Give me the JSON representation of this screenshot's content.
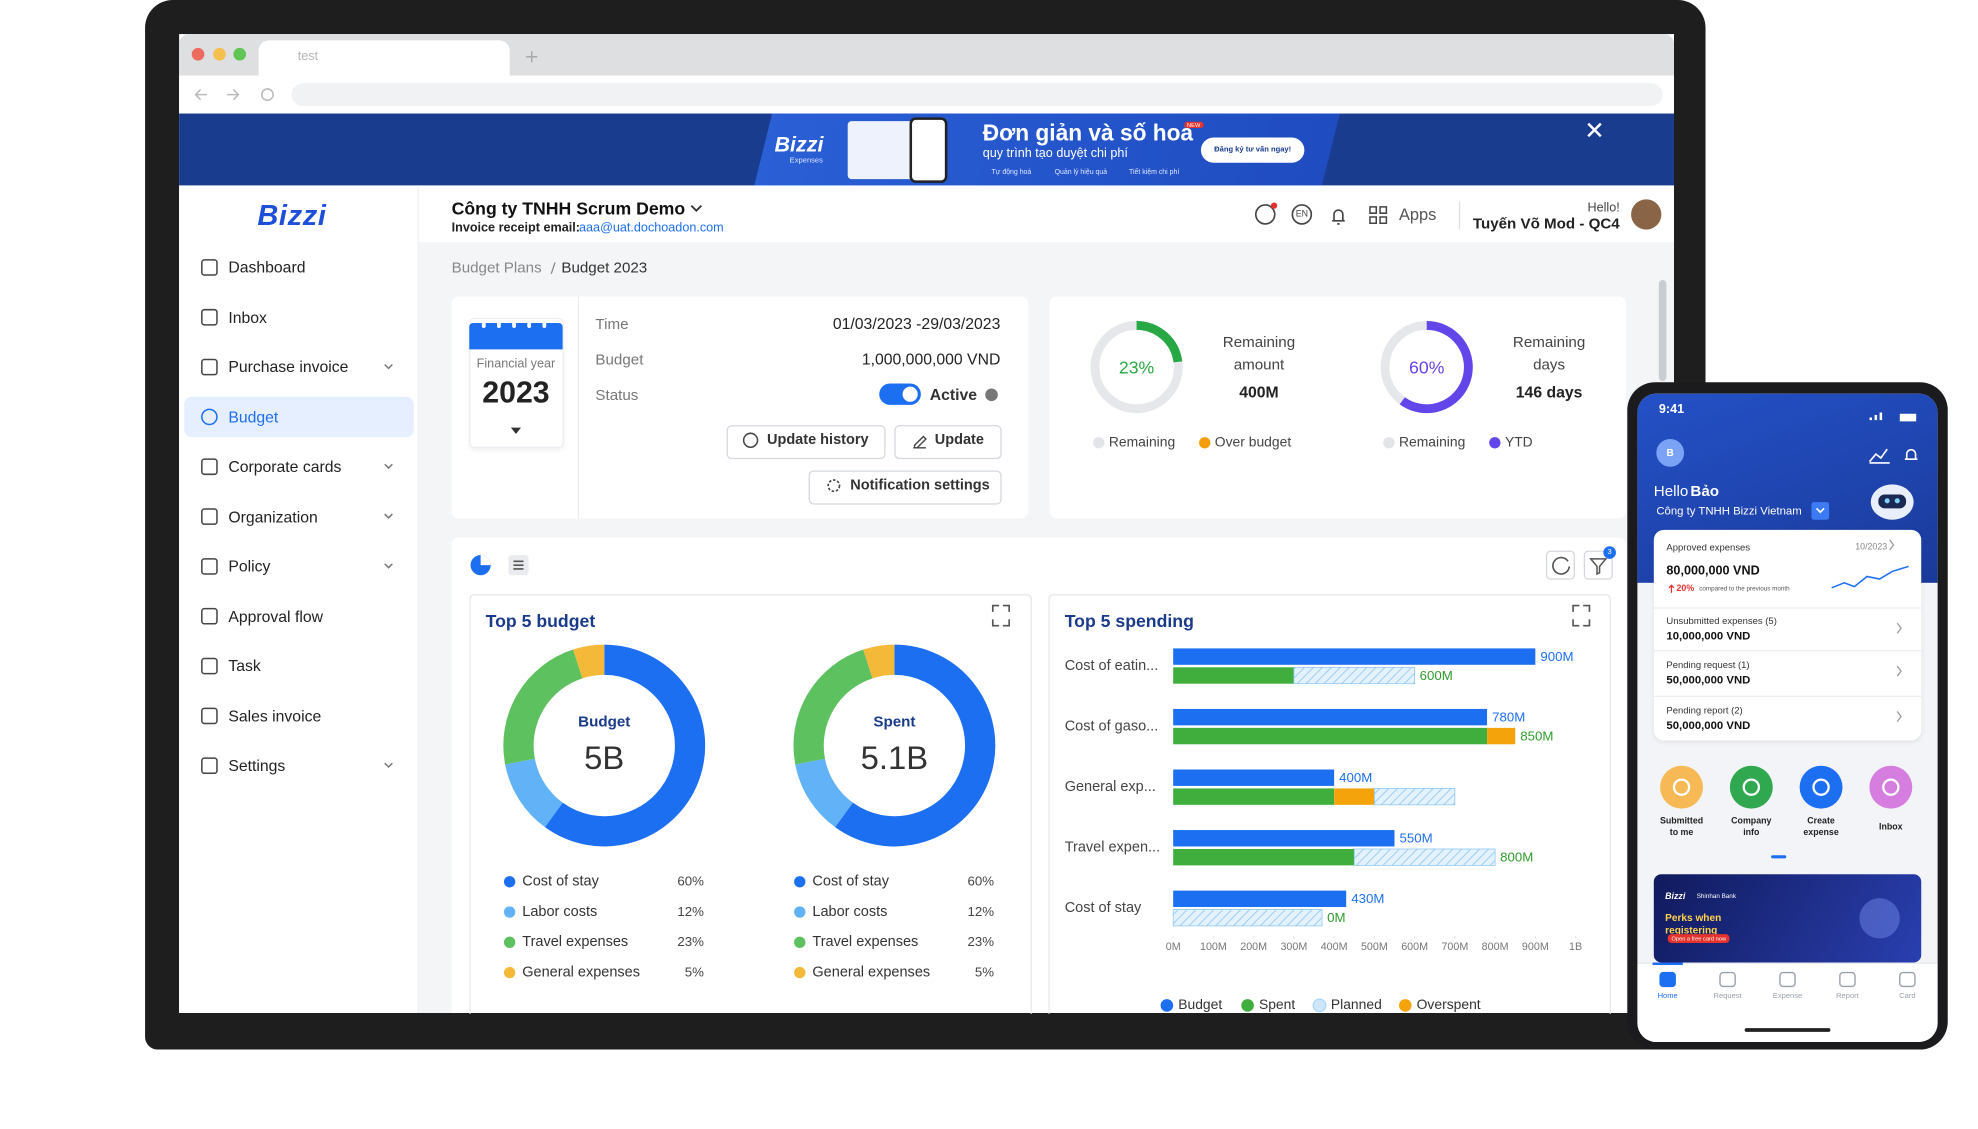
{
  "browser": {
    "tab": "test"
  },
  "banner": {
    "brand": "Bizzi",
    "brand_sub": "Expenses",
    "headline": "Đơn giản và số hoá",
    "badge": "NEW",
    "subline": "quy trình tạo duyệt chi phí",
    "features": [
      "Tự động hoá",
      "Quản lý hiệu quả",
      "Tiết kiệm chi phí"
    ],
    "cta": "Đăng ký tư vấn ngay!"
  },
  "sidebar": {
    "logo": "Bizzi",
    "active": 3,
    "menu": [
      {
        "label": "Dashboard",
        "expandable": false
      },
      {
        "label": "Inbox",
        "expandable": false
      },
      {
        "label": "Purchase invoice",
        "expandable": true
      },
      {
        "label": "Budget",
        "expandable": false
      },
      {
        "label": "Corporate cards",
        "expandable": true
      },
      {
        "label": "Organization",
        "expandable": true
      },
      {
        "label": "Policy",
        "expandable": true
      },
      {
        "label": "Approval flow",
        "expandable": false
      },
      {
        "label": "Task",
        "expandable": false
      },
      {
        "label": "Sales invoice",
        "expandable": false
      },
      {
        "label": "Settings",
        "expandable": true
      }
    ]
  },
  "header": {
    "company": "Công ty TNHH Scrum Demo",
    "email_label": "Invoice receipt email:",
    "email": "aaa@uat.dochoadon.com",
    "lang": "EN",
    "apps": "Apps",
    "greeting": "Hello!",
    "user": "Tuyến Võ Mod - QC4"
  },
  "breadcrumb": [
    "Budget Plans",
    "Budget 2023"
  ],
  "budget_card": {
    "year_label": "Financial year",
    "year": "2023",
    "rows": [
      {
        "label": "Time",
        "value": "01/03/2023 -29/03/2023"
      },
      {
        "label": "Budget",
        "value": "1,000,000,000 VND"
      },
      {
        "label": "Status",
        "value": "Active"
      }
    ],
    "buttons": [
      "Update history",
      "Update",
      "Notification settings"
    ]
  },
  "gauges": [
    {
      "value": 23,
      "value_label": "23%",
      "color": "#27a844",
      "title": "Remaining amount",
      "amount": "400M",
      "legend": [
        {
          "name": "Remaining",
          "color": "#e2e4e8"
        },
        {
          "name": "Over budget",
          "color": "#f59e0b"
        }
      ]
    },
    {
      "value": 60,
      "value_label": "60%",
      "color": "#6246ea",
      "title": "Remaining days",
      "amount": "146 days",
      "legend": [
        {
          "name": "Remaining",
          "color": "#e2e4e8"
        },
        {
          "name": "YTD",
          "color": "#6246ea"
        }
      ]
    }
  ],
  "toolbar": {
    "filter_count": "3"
  },
  "chart_data": [
    {
      "type": "donut",
      "title": "Top 5 budget",
      "center_label": "Budget",
      "center_value": "5B",
      "categories": [
        "Cost of stay",
        "Labor costs",
        "Travel expenses",
        "General expenses"
      ],
      "values": [
        60,
        12,
        23,
        5
      ],
      "value_labels": [
        "60%",
        "12%",
        "23%",
        "5%"
      ],
      "colors": [
        "#1d6ff2",
        "#62b2f8",
        "#5ec15f",
        "#f5b93a"
      ]
    },
    {
      "type": "donut",
      "center_label": "Spent",
      "center_value": "5.1B",
      "categories": [
        "Cost of stay",
        "Labor costs",
        "Travel expenses",
        "General expenses"
      ],
      "values": [
        60,
        12,
        23,
        5
      ],
      "value_labels": [
        "60%",
        "12%",
        "23%",
        "5%"
      ],
      "colors": [
        "#1d6ff2",
        "#62b2f8",
        "#5ec15f",
        "#f5b93a"
      ]
    },
    {
      "type": "hbar",
      "title": "Top 5 spending",
      "categories": [
        "Cost of eatin...",
        "Cost of gaso...",
        "General exp...",
        "Travel expen...",
        "Cost of stay"
      ],
      "series": [
        {
          "name": "Budget",
          "color": "#1d6ff2",
          "values": [
            900,
            780,
            400,
            550,
            430
          ],
          "value_labels": [
            "900M",
            "780M",
            "400M",
            "550M",
            "430M"
          ]
        },
        {
          "name": "Spent",
          "color": "#3fae3c",
          "values": [
            300,
            780,
            400,
            450,
            0
          ]
        },
        {
          "name": "Planned",
          "color": "#cfe7fb",
          "values": [
            300,
            0,
            200,
            350,
            370
          ]
        },
        {
          "name": "Overspent",
          "color": "#f5a30b",
          "values": [
            0,
            70,
            100,
            0,
            0
          ]
        }
      ],
      "spent_labels": [
        "600M",
        "850M",
        null,
        "800M",
        "0M"
      ],
      "xlim": [
        0,
        1000
      ],
      "xticks": [
        {
          "value": 0,
          "label": "0M"
        },
        {
          "value": 100,
          "label": "100M"
        },
        {
          "value": 200,
          "label": "200M"
        },
        {
          "value": 300,
          "label": "300M"
        },
        {
          "value": 400,
          "label": "400M"
        },
        {
          "value": 500,
          "label": "500M"
        },
        {
          "value": 600,
          "label": "600M"
        },
        {
          "value": 700,
          "label": "700M"
        },
        {
          "value": 800,
          "label": "800M"
        },
        {
          "value": 900,
          "label": "900M"
        },
        {
          "value": 1000,
          "label": "1B"
        }
      ],
      "grid": false
    }
  ],
  "phone": {
    "time": "9:41",
    "avatar": "B",
    "greeting": "Hello",
    "name": "Bảo",
    "company": "Công ty TNHH Bizzi Vietnam",
    "approved": {
      "title": "Approved expenses",
      "period": "10/2023",
      "amount": "80,000,000 VND",
      "change": "20%",
      "change_note": "compared to the previous month"
    },
    "items": [
      {
        "title": "Unsubmitted expenses (5)",
        "amount": "10,000,000 VND"
      },
      {
        "title": "Pending request (1)",
        "amount": "50,000,000 VND"
      },
      {
        "title": "Pending report (2)",
        "amount": "50,000,000 VND"
      }
    ],
    "actions": [
      {
        "label": "Submitted to me",
        "color": "#f7b955"
      },
      {
        "label": "Company info",
        "color": "#2fa84f"
      },
      {
        "label": "Create expense",
        "color": "#1d6ff2"
      },
      {
        "label": "Inbox",
        "color": "#d67de0"
      }
    ],
    "promo": {
      "brand": "Bizzi",
      "partner": "Shinhan Bank",
      "text": "Perks when registering",
      "cta": "Open a free card now"
    },
    "nav": [
      "Home",
      "Request",
      "Expense",
      "Report",
      "Card"
    ],
    "nav_active": 0
  }
}
